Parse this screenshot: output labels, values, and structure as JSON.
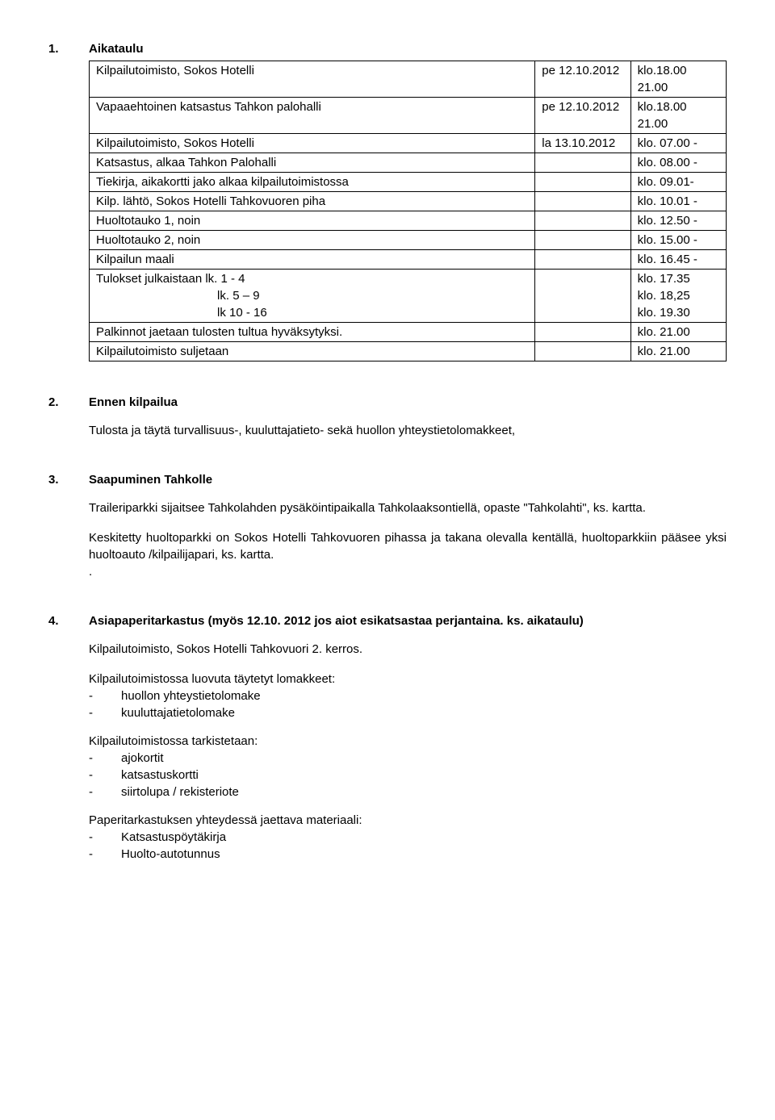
{
  "s1": {
    "num": "1.",
    "title": "Aikataulu",
    "rows": [
      [
        "Kilpailutoimisto, Sokos Hotelli",
        "pe 12.10.2012",
        "klo.18.00 21.00"
      ],
      [
        "Vapaaehtoinen katsastus Tahkon palohalli",
        "pe 12.10.2012",
        "klo.18.00 21.00"
      ],
      [
        "Kilpailutoimisto, Sokos Hotelli",
        "la 13.10.2012",
        "klo. 07.00 -"
      ],
      [
        "Katsastus, alkaa Tahkon Palohalli",
        "",
        "klo. 08.00 -"
      ],
      [
        "Tiekirja, aikakortti jako alkaa kilpailutoimistossa",
        "",
        "klo. 09.01-"
      ],
      [
        "Kilp. lähtö, Sokos Hotelli Tahkovuoren piha",
        "",
        "klo. 10.01 -"
      ],
      [
        "Huoltotauko 1, noin",
        "",
        "klo. 12.50 -"
      ],
      [
        "Huoltotauko 2, noin",
        "",
        "klo. 15.00 -"
      ],
      [
        "Kilpailun maali",
        "",
        "klo. 16.45 -"
      ],
      [
        "Tulokset julkaistaan lk. 1 - 4\n                                    lk. 5 – 9\n                                    lk 10 - 16",
        "",
        "klo. 17.35\nklo. 18,25\nklo. 19.30"
      ],
      [
        "Palkinnot jaetaan tulosten tultua hyväksytyksi.",
        "",
        "klo. 21.00"
      ],
      [
        "Kilpailutoimisto suljetaan",
        "",
        "klo. 21.00"
      ]
    ]
  },
  "s2": {
    "num": "2.",
    "title": "Ennen kilpailua",
    "body": "Tulosta ja täytä turvallisuus-,  kuuluttajatieto-  sekä huollon yhteystietolomakkeet,"
  },
  "s3": {
    "num": "3.",
    "title": "Saapuminen Tahkolle",
    "p1": "Traileriparkki sijaitsee Tahkolahden pysäköintipaikalla Tahkolaaksontiellä, opaste \"Tahkolahti\", ks. kartta.",
    "p2": "Keskitetty huoltoparkki on Sokos Hotelli Tahkovuoren pihassa ja takana olevalla kentällä, huoltoparkkiin pääsee yksi huoltoauto /kilpailijapari, ks. kartta.",
    "dot": "."
  },
  "s4": {
    "num": "4.",
    "title": "Asiapaperitarkastus (myös 12.10. 2012 jos aiot esikatsastaa perjantaina. ks. aikataulu)",
    "p1": "Kilpailutoimisto, Sokos Hotelli Tahkovuori  2. kerros.",
    "l1_head": "Kilpailutoimistossa luovuta täytetyt lomakkeet:",
    "l1": [
      "huollon yhteystietolomake",
      "kuuluttajatietolomake"
    ],
    "l2_head": "Kilpailutoimistossa tarkistetaan:",
    "l2": [
      "ajokortit",
      "katsastuskortti",
      "siirtolupa / rekisteriote"
    ],
    "l3_head": "Paperitarkastuksen yhteydessä jaettava materiaali:",
    "l3": [
      "Katsastuspöytäkirja",
      "Huolto-autotunnus"
    ]
  }
}
